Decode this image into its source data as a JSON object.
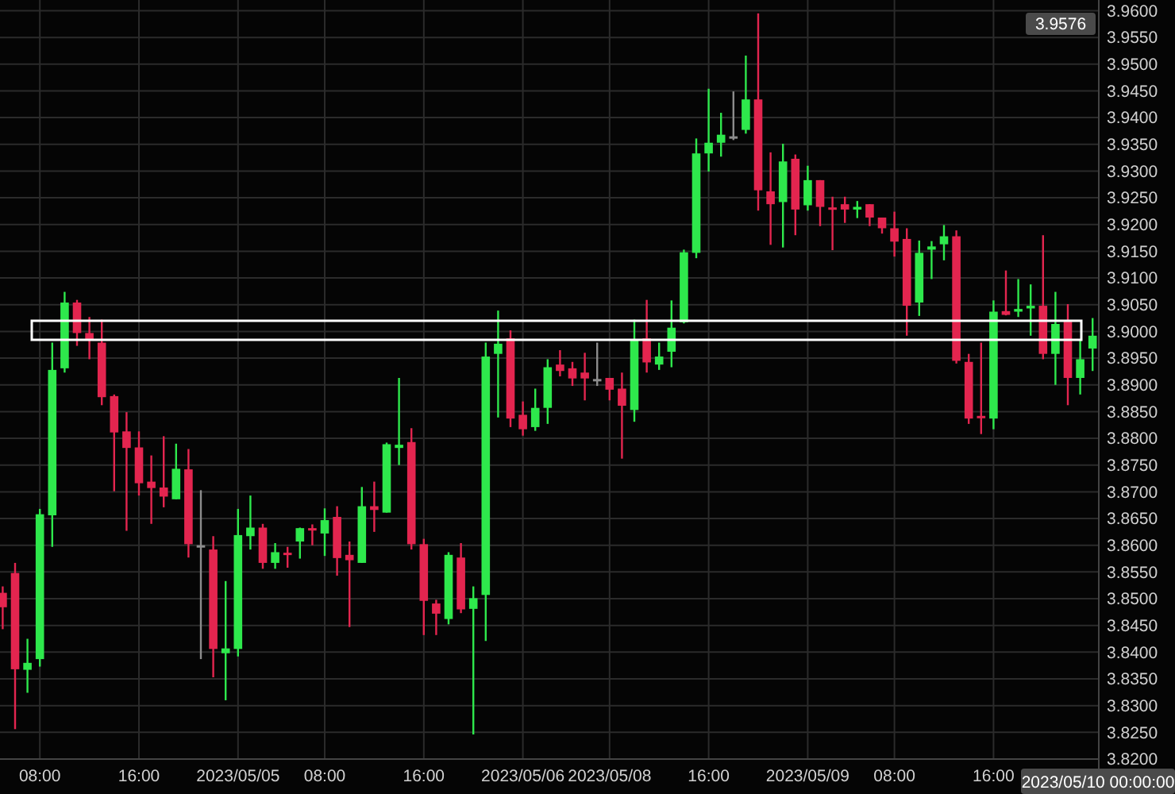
{
  "chart_data": {
    "type": "candlestick",
    "categories": [
      null,
      null,
      null,
      "08:00",
      null,
      null,
      null,
      null,
      null,
      null,
      null,
      "16:00",
      null,
      null,
      null,
      null,
      null,
      null,
      null,
      "2023/05/05",
      null,
      null,
      null,
      null,
      null,
      null,
      "08:00",
      null,
      null,
      null,
      null,
      null,
      null,
      null,
      "16:00",
      null,
      null,
      null,
      null,
      null,
      null,
      null,
      "2023/05/06",
      null,
      null,
      null,
      null,
      null,
      null,
      "2023/05/08",
      null,
      null,
      null,
      null,
      null,
      null,
      null,
      "16:00",
      null,
      null,
      null,
      null,
      null,
      null,
      null,
      "2023/05/09",
      null,
      null,
      null,
      null,
      null,
      null,
      "08:00",
      null,
      null,
      null,
      null,
      null,
      null,
      null,
      "16:00",
      null,
      null,
      null,
      null,
      null,
      null,
      null,
      null
    ],
    "ohlc": [
      [
        3.8511,
        3.8523,
        3.8443,
        3.8484
      ],
      [
        3.8548,
        3.8567,
        3.8256,
        3.8368
      ],
      [
        3.8367,
        3.8425,
        3.8324,
        3.838
      ],
      [
        3.8387,
        3.8668,
        3.8373,
        3.8658
      ],
      [
        3.8656,
        3.8979,
        3.8597,
        3.8928
      ],
      [
        3.8931,
        3.9074,
        3.8923,
        3.9054
      ],
      [
        3.9054,
        3.9059,
        3.8973,
        3.8997
      ],
      [
        3.8997,
        3.9027,
        3.8948,
        3.8984
      ],
      [
        3.8979,
        3.9022,
        3.8862,
        3.8877
      ],
      [
        3.8879,
        3.8882,
        3.8701,
        3.8811
      ],
      [
        3.8813,
        3.8849,
        3.8627,
        3.8782
      ],
      [
        3.8783,
        3.8813,
        3.8693,
        3.8716
      ],
      [
        3.8719,
        3.8768,
        3.864,
        3.8707
      ],
      [
        3.8708,
        3.8804,
        3.8671,
        3.8691
      ],
      [
        3.8686,
        3.879,
        3.8686,
        3.8743
      ],
      [
        3.8742,
        3.878,
        3.8577,
        3.8602
      ],
      [
        3.86,
        3.8703,
        3.8387,
        3.86
      ],
      [
        3.8592,
        3.8617,
        3.8353,
        3.8406
      ],
      [
        3.8398,
        3.8533,
        3.831,
        3.8407
      ],
      [
        3.8406,
        3.8668,
        3.8392,
        3.8619
      ],
      [
        3.8617,
        3.8693,
        3.8592,
        3.8633
      ],
      [
        3.8633,
        3.864,
        3.8556,
        3.8567
      ],
      [
        3.8567,
        3.8604,
        3.8556,
        3.8587
      ],
      [
        3.8586,
        3.8597,
        3.8558,
        3.8582
      ],
      [
        3.8607,
        3.8633,
        3.8575,
        3.8632
      ],
      [
        3.8632,
        3.8639,
        3.86,
        3.8628
      ],
      [
        3.8622,
        3.8669,
        3.858,
        3.8647
      ],
      [
        3.8653,
        3.8673,
        3.8543,
        3.8576
      ],
      [
        3.8582,
        3.8607,
        3.8447,
        3.8572
      ],
      [
        3.8567,
        3.8709,
        3.8567,
        3.8673
      ],
      [
        3.8673,
        3.8719,
        3.8625,
        3.8666
      ],
      [
        3.8661,
        3.8792,
        3.8661,
        3.8789
      ],
      [
        3.8782,
        3.8913,
        3.875,
        3.8788
      ],
      [
        3.8793,
        3.8819,
        3.8592,
        3.8602
      ],
      [
        3.8602,
        3.8612,
        3.8432,
        3.8496
      ],
      [
        3.8491,
        3.8498,
        3.8432,
        3.8472
      ],
      [
        3.8462,
        3.8587,
        3.8452,
        3.8582
      ],
      [
        3.8577,
        3.8604,
        3.8473,
        3.848
      ],
      [
        3.8481,
        3.8523,
        3.8246,
        3.8501
      ],
      [
        3.8507,
        3.8979,
        3.8421,
        3.8953
      ],
      [
        3.8958,
        3.9039,
        3.8839,
        3.8977
      ],
      [
        3.8987,
        3.9002,
        3.8821,
        3.8837
      ],
      [
        3.8844,
        3.8869,
        3.8805,
        3.8817
      ],
      [
        3.8821,
        3.8893,
        3.8814,
        3.8857
      ],
      [
        3.8857,
        3.8948,
        3.8827,
        3.8933
      ],
      [
        3.8938,
        3.8965,
        3.8916,
        3.8926
      ],
      [
        3.8931,
        3.8943,
        3.8898,
        3.8912
      ],
      [
        3.8923,
        3.896,
        3.8871,
        3.8912
      ],
      [
        3.8911,
        3.8979,
        3.8898,
        3.8911
      ],
      [
        3.8913,
        3.8913,
        3.8871,
        3.8891
      ],
      [
        3.8893,
        3.8923,
        3.8762,
        3.8861
      ],
      [
        3.8853,
        3.9022,
        3.8831,
        3.8984
      ],
      [
        3.8987,
        3.9059,
        3.8923,
        3.8942
      ],
      [
        3.8938,
        3.8979,
        3.8928,
        3.8953
      ],
      [
        3.8962,
        3.9058,
        3.8933,
        3.9007
      ],
      [
        3.9017,
        3.9153,
        3.9015,
        3.9148
      ],
      [
        3.9147,
        3.9361,
        3.9137,
        3.9333
      ],
      [
        3.9333,
        3.9454,
        3.9299,
        3.9353
      ],
      [
        3.9353,
        3.9409,
        3.9327,
        3.9368
      ],
      [
        3.9365,
        3.9449,
        3.9358,
        3.9365
      ],
      [
        3.9377,
        3.9516,
        3.937,
        3.9434
      ],
      [
        3.9434,
        3.9595,
        3.9226,
        3.9264
      ],
      [
        3.9262,
        3.9335,
        3.9162,
        3.9238
      ],
      [
        3.9242,
        3.9351,
        3.9157,
        3.9318
      ],
      [
        3.9323,
        3.9331,
        3.918,
        3.9228
      ],
      [
        3.9236,
        3.931,
        3.9226,
        3.9283
      ],
      [
        3.9283,
        3.9283,
        3.9197,
        3.9233
      ],
      [
        3.9232,
        3.9252,
        3.9152,
        3.9228
      ],
      [
        3.9238,
        3.9252,
        3.9203,
        3.9228
      ],
      [
        3.9228,
        3.9244,
        3.9212,
        3.9233
      ],
      [
        3.9238,
        3.9238,
        3.9197,
        3.9213
      ],
      [
        3.9213,
        3.9213,
        3.9183,
        3.9193
      ],
      [
        3.9193,
        3.9224,
        3.914,
        3.9168
      ],
      [
        3.9173,
        3.9193,
        3.8992,
        3.9048
      ],
      [
        3.9054,
        3.917,
        3.9029,
        3.9147
      ],
      [
        3.9153,
        3.9169,
        3.9098,
        3.9159
      ],
      [
        3.9163,
        3.9199,
        3.9133,
        3.9178
      ],
      [
        3.9178,
        3.9189,
        3.894,
        3.8945
      ],
      [
        3.8943,
        3.8958,
        3.8827,
        3.8837
      ],
      [
        3.8842,
        3.8979,
        3.8808,
        3.8838
      ],
      [
        3.8837,
        3.9058,
        3.8817,
        3.9037
      ],
      [
        3.9038,
        3.9114,
        3.903,
        3.9031
      ],
      [
        3.9037,
        3.9098,
        3.9027,
        3.9042
      ],
      [
        3.9043,
        3.9088,
        3.8992,
        3.9048
      ],
      [
        3.9048,
        3.918,
        3.8948,
        3.8958
      ],
      [
        3.8958,
        3.9074,
        3.89,
        3.9014
      ],
      [
        3.9019,
        3.9051,
        3.8862,
        3.8913
      ],
      [
        3.8913,
        3.8985,
        3.8882,
        3.8948
      ],
      [
        3.8968,
        3.9025,
        3.8926,
        3.8992
      ]
    ],
    "colors": [
      "#e3254f",
      "#e3254f",
      "#2ee84c",
      "#2ee84c",
      "#2ee84c",
      "#2ee84c",
      "#e3254f",
      "#e3254f",
      "#e3254f",
      "#e3254f",
      "#e3254f",
      "#e3254f",
      "#e3254f",
      "#e3254f",
      "#2ee84c",
      "#e3254f",
      "#8c8c8c",
      "#e3254f",
      "#2ee84c",
      "#2ee84c",
      "#2ee84c",
      "#e3254f",
      "#2ee84c",
      "#e3254f",
      "#2ee84c",
      "#e3254f",
      "#2ee84c",
      "#e3254f",
      "#e3254f",
      "#2ee84c",
      "#e3254f",
      "#2ee84c",
      "#2ee84c",
      "#e3254f",
      "#e3254f",
      "#e3254f",
      "#2ee84c",
      "#e3254f",
      "#2ee84c",
      "#2ee84c",
      "#2ee84c",
      "#e3254f",
      "#e3254f",
      "#2ee84c",
      "#2ee84c",
      "#e3254f",
      "#e3254f",
      "#e3254f",
      "#8c8c8c",
      "#e3254f",
      "#e3254f",
      "#2ee84c",
      "#e3254f",
      "#2ee84c",
      "#2ee84c",
      "#2ee84c",
      "#2ee84c",
      "#2ee84c",
      "#2ee84c",
      "#8c8c8c",
      "#2ee84c",
      "#e3254f",
      "#e3254f",
      "#2ee84c",
      "#e3254f",
      "#2ee84c",
      "#e3254f",
      "#e3254f",
      "#e3254f",
      "#2ee84c",
      "#e3254f",
      "#e3254f",
      "#e3254f",
      "#e3254f",
      "#2ee84c",
      "#2ee84c",
      "#2ee84c",
      "#e3254f",
      "#e3254f",
      "#e3254f",
      "#2ee84c",
      "#e3254f",
      "#2ee84c",
      "#2ee84c",
      "#e3254f",
      "#2ee84c",
      "#e3254f",
      "#2ee84c",
      "#2ee84c"
    ],
    "ylim": [
      3.82,
      3.962
    ],
    "yticks": [
      {
        "value": 3.82,
        "label": "3.8200"
      },
      {
        "value": 3.825,
        "label": "3.8250"
      },
      {
        "value": 3.83,
        "label": "3.8300"
      },
      {
        "value": 3.835,
        "label": "3.8350"
      },
      {
        "value": 3.84,
        "label": "3.8400"
      },
      {
        "value": 3.845,
        "label": "3.8450"
      },
      {
        "value": 3.85,
        "label": "3.8500"
      },
      {
        "value": 3.855,
        "label": "3.8550"
      },
      {
        "value": 3.86,
        "label": "3.8600"
      },
      {
        "value": 3.865,
        "label": "3.8650"
      },
      {
        "value": 3.87,
        "label": "3.8700"
      },
      {
        "value": 3.875,
        "label": "3.8750"
      },
      {
        "value": 3.88,
        "label": "3.8800"
      },
      {
        "value": 3.885,
        "label": "3.8850"
      },
      {
        "value": 3.89,
        "label": "3.8900"
      },
      {
        "value": 3.895,
        "label": "3.8950"
      },
      {
        "value": 3.9,
        "label": "3.9000"
      },
      {
        "value": 3.905,
        "label": "3.9050"
      },
      {
        "value": 3.91,
        "label": "3.9100"
      },
      {
        "value": 3.915,
        "label": "3.9150"
      },
      {
        "value": 3.92,
        "label": "3.9200"
      },
      {
        "value": 3.925,
        "label": "3.9250"
      },
      {
        "value": 3.93,
        "label": "3.9300"
      },
      {
        "value": 3.935,
        "label": "3.9350"
      },
      {
        "value": 3.94,
        "label": "3.9400"
      },
      {
        "value": 3.945,
        "label": "3.9450"
      },
      {
        "value": 3.95,
        "label": "3.9500"
      },
      {
        "value": 3.955,
        "label": "3.9550"
      },
      {
        "value": 3.96,
        "label": "3.9600"
      }
    ],
    "grid": true,
    "annotations": [
      "3.9576",
      "2023/05/10 00:00:00"
    ]
  }
}
